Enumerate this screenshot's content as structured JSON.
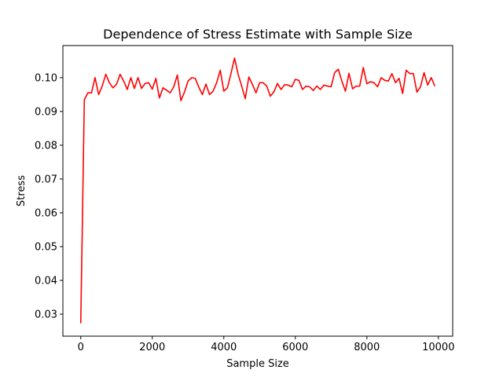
{
  "chart_data": {
    "type": "line",
    "title": "Dependence of Stress Estimate with Sample Size",
    "xlabel": "Sample Size",
    "ylabel": "Stress",
    "xlim": [
      -500,
      10400
    ],
    "ylim": [
      0.0235,
      0.1095
    ],
    "xticks": [
      0,
      2000,
      4000,
      6000,
      8000,
      10000
    ],
    "xtick_labels": [
      "0",
      "2000",
      "4000",
      "6000",
      "8000",
      "10000"
    ],
    "yticks": [
      0.03,
      0.04,
      0.05,
      0.06,
      0.07,
      0.08,
      0.09,
      0.1
    ],
    "ytick_labels": [
      "0.03",
      "0.04",
      "0.05",
      "0.06",
      "0.07",
      "0.08",
      "0.09",
      "0.10"
    ],
    "grid": false,
    "series": [
      {
        "color": "#ff0000",
        "x": [
          0,
          100,
          200,
          300,
          400,
          500,
          600,
          700,
          800,
          900,
          1000,
          1100,
          1200,
          1300,
          1400,
          1500,
          1600,
          1700,
          1800,
          1900,
          2000,
          2100,
          2200,
          2300,
          2400,
          2500,
          2600,
          2700,
          2800,
          2900,
          3000,
          3100,
          3200,
          3300,
          3400,
          3500,
          3600,
          3700,
          3800,
          3900,
          4000,
          4100,
          4200,
          4300,
          4400,
          4500,
          4600,
          4700,
          4800,
          4900,
          5000,
          5100,
          5200,
          5300,
          5400,
          5500,
          5600,
          5700,
          5800,
          5900,
          6000,
          6100,
          6200,
          6300,
          6400,
          6500,
          6600,
          6700,
          6800,
          6900,
          7000,
          7100,
          7200,
          7300,
          7400,
          7500,
          7600,
          7700,
          7800,
          7900,
          8000,
          8100,
          8200,
          8300,
          8400,
          8500,
          8600,
          8700,
          8800,
          8900,
          9000,
          9100,
          9200,
          9300,
          9400,
          9500,
          9600,
          9700,
          9800,
          9900
        ],
        "y": [
          0.0273,
          0.0935,
          0.0955,
          0.0955,
          0.1,
          0.095,
          0.0975,
          0.101,
          0.0985,
          0.097,
          0.098,
          0.101,
          0.099,
          0.0965,
          0.1,
          0.0968,
          0.1,
          0.0968,
          0.0983,
          0.0985,
          0.0966,
          0.0998,
          0.094,
          0.097,
          0.0963,
          0.0955,
          0.0973,
          0.1008,
          0.0932,
          0.0957,
          0.099,
          0.1,
          0.0998,
          0.0972,
          0.095,
          0.0981,
          0.095,
          0.096,
          0.0985,
          0.1022,
          0.096,
          0.097,
          0.1012,
          0.1058,
          0.101,
          0.0975,
          0.0938,
          0.1002,
          0.098,
          0.0955,
          0.0985,
          0.0985,
          0.0975,
          0.0945,
          0.0958,
          0.0983,
          0.0965,
          0.0979,
          0.0978,
          0.0973,
          0.0995,
          0.0992,
          0.0965,
          0.0975,
          0.0973,
          0.0962,
          0.0975,
          0.0965,
          0.0978,
          0.0975,
          0.0973,
          0.1015,
          0.1025,
          0.099,
          0.096,
          0.1013,
          0.0967,
          0.0975,
          0.0975,
          0.103,
          0.0982,
          0.0988,
          0.0985,
          0.0973,
          0.1,
          0.0992,
          0.099,
          0.1012,
          0.0985,
          0.0998,
          0.0953,
          0.1022,
          0.1012,
          0.1012,
          0.0957,
          0.0973,
          0.1015,
          0.0978,
          0.1,
          0.0975
        ]
      }
    ]
  }
}
